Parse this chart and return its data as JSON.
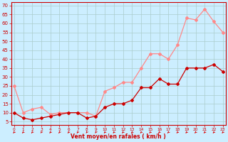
{
  "x": [
    0,
    1,
    2,
    3,
    4,
    5,
    6,
    7,
    8,
    9,
    10,
    11,
    12,
    13,
    14,
    15,
    16,
    17,
    18,
    19,
    20,
    21,
    22,
    23
  ],
  "wind_mean": [
    10,
    7,
    6,
    7,
    8,
    9,
    10,
    10,
    7,
    8,
    13,
    15,
    15,
    17,
    24,
    24,
    29,
    26,
    26,
    35,
    35,
    35,
    37,
    33
  ],
  "wind_gust": [
    25,
    10,
    12,
    13,
    9,
    10,
    10,
    10,
    10,
    8,
    22,
    24,
    27,
    27,
    35,
    43,
    43,
    40,
    48,
    63,
    62,
    68,
    61,
    55
  ],
  "yticks": [
    5,
    10,
    15,
    20,
    25,
    30,
    35,
    40,
    45,
    50,
    55,
    60,
    65,
    70
  ],
  "ylim": [
    3,
    72
  ],
  "xlim": [
    -0.3,
    23.3
  ],
  "xlabel": "Vent moyen/en rafales ( km/h )",
  "background_color": "#cceeff",
  "grid_color": "#aacccc",
  "mean_color": "#cc0000",
  "gust_color": "#ff8888",
  "arrow_color": "#dd0000",
  "xlabel_color": "#cc0000",
  "tick_color": "#cc0000",
  "axis_color": "#cc0000",
  "arrow_angles": [
    210,
    200,
    220,
    230,
    215,
    225,
    220,
    225,
    230,
    235,
    200,
    205,
    205,
    210,
    205,
    200,
    210,
    210,
    205,
    200,
    205,
    200,
    205,
    210
  ]
}
